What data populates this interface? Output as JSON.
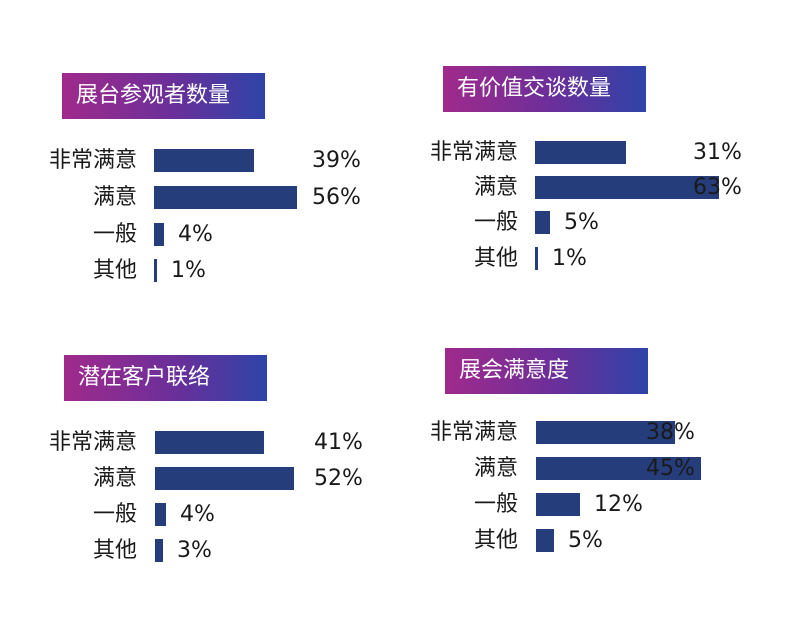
{
  "chart_data": [
    {
      "type": "bar",
      "title": "展台参观者数量",
      "categories": [
        "非常满意",
        "满意",
        "一般",
        "其他"
      ],
      "values": [
        39,
        56,
        4,
        1
      ],
      "labels": [
        "39%",
        "56%",
        "4%",
        "1%"
      ],
      "unit": "%"
    },
    {
      "type": "bar",
      "title": "有价值交谈数量",
      "categories": [
        "非常满意",
        "满意",
        "一般",
        "其他"
      ],
      "values": [
        31,
        63,
        5,
        1
      ],
      "labels": [
        "31%",
        "63%",
        "5%",
        "1%"
      ],
      "unit": "%"
    },
    {
      "type": "bar",
      "title": "潜在客户联络",
      "categories": [
        "非常满意",
        "满意",
        "一般",
        "其他"
      ],
      "values": [
        41,
        52,
        4,
        3
      ],
      "labels": [
        "41%",
        "52%",
        "4%",
        "3%"
      ],
      "unit": "%"
    },
    {
      "type": "bar",
      "title": "展会满意度",
      "categories": [
        "非常满意",
        "满意",
        "一般",
        "其他"
      ],
      "values": [
        38,
        45,
        12,
        5
      ],
      "labels": [
        "38%",
        "45%",
        "12%",
        "5%"
      ],
      "unit": "%"
    }
  ],
  "colors": {
    "bar": "#253d7a",
    "title_gradient_start": "#a02a8c",
    "title_gradient_end": "#2e44a8"
  }
}
